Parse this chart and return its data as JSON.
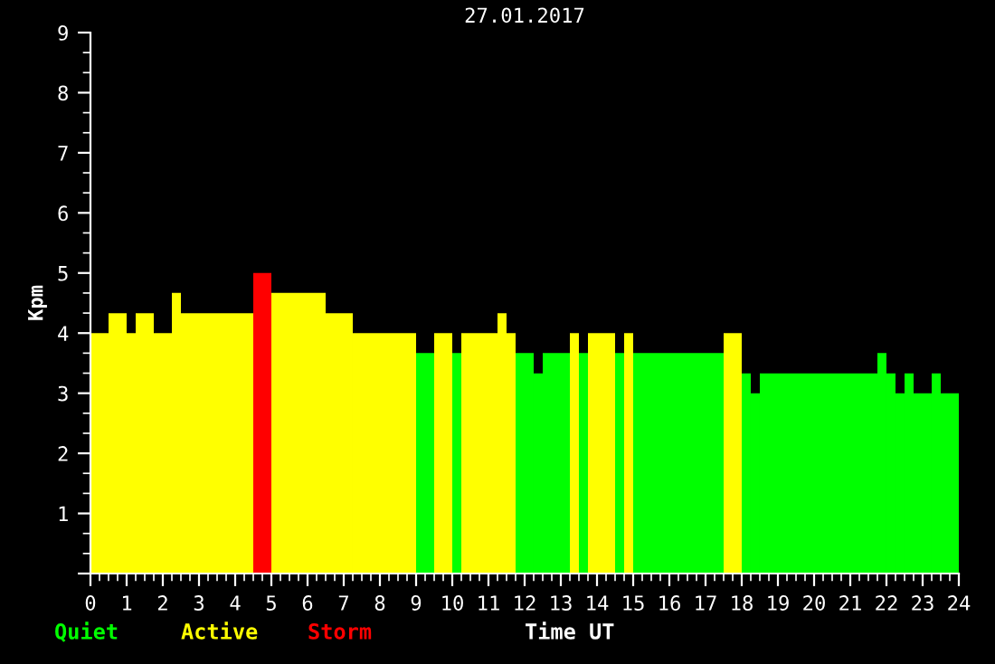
{
  "chart_data": {
    "type": "bar",
    "title": "27.01.2017",
    "xlabel": "Time UT",
    "ylabel": "Kpm",
    "x": [
      0.25,
      0.75,
      1.125,
      1.5,
      2,
      2.375,
      3.5,
      4.75,
      5.75,
      6.875,
      8.125,
      9.25,
      9.75,
      10.125,
      10.75,
      11.375,
      11.625,
      12,
      12.375,
      12.875,
      13.375,
      13.625,
      14.125,
      14.625,
      14.875,
      16.25,
      17.75,
      18.125,
      18.375,
      20.125,
      21.875,
      22.125,
      22.375,
      22.625,
      23,
      23.375,
      23.75
    ],
    "series": [
      {
        "name": "Quiet",
        "color": "#00ff00",
        "values": [
          null,
          null,
          null,
          null,
          null,
          null,
          null,
          null,
          null,
          null,
          null,
          3.67,
          null,
          3.67,
          null,
          null,
          null,
          3.67,
          3.33,
          3.67,
          null,
          3.67,
          null,
          3.67,
          null,
          3.67,
          null,
          3.33,
          3,
          3.33,
          3.67,
          3.33,
          3,
          3.33,
          3,
          3.33,
          3
        ]
      },
      {
        "name": "Active",
        "color": "#ffff00",
        "values": [
          4,
          4.33,
          4,
          4.33,
          4,
          4.67,
          4.33,
          null,
          4.67,
          4.33,
          4,
          null,
          4,
          null,
          4,
          4.33,
          4,
          null,
          null,
          null,
          4,
          null,
          4,
          null,
          4,
          null,
          4,
          null,
          null,
          null,
          null,
          null,
          null,
          null,
          null,
          null,
          null
        ]
      },
      {
        "name": "Storm",
        "color": "#ff0000",
        "values": [
          null,
          null,
          null,
          null,
          null,
          null,
          null,
          5,
          null,
          null,
          null,
          null,
          null,
          null,
          null,
          null,
          null,
          null,
          null,
          null,
          null,
          null,
          null,
          null,
          null,
          null,
          null,
          null,
          null,
          null,
          null,
          null,
          null,
          null,
          null,
          null,
          null
        ]
      }
    ],
    "xlim": [
      0,
      24
    ],
    "xticks": [
      0,
      1,
      2,
      3,
      4,
      5,
      6,
      7,
      8,
      9,
      10,
      11,
      12,
      13,
      14,
      15,
      16,
      17,
      18,
      19,
      20,
      21,
      22,
      23,
      24
    ],
    "ylim": [
      0,
      9
    ],
    "yticks": [
      {
        "value": 0,
        "label": null
      },
      1,
      2,
      3,
      4,
      5,
      6,
      7,
      8,
      9
    ],
    "grid": false,
    "legend": "bottom left"
  }
}
